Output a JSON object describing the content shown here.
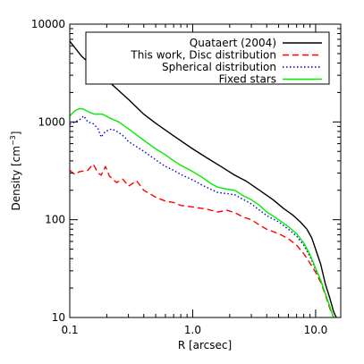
{
  "chart_data": {
    "type": "line",
    "xscale": "log",
    "yscale": "log",
    "xlim": [
      0.1,
      16
    ],
    "ylim": [
      10,
      10000
    ],
    "xlabel": "R [arcsec]",
    "ylabel_prefix": "Density [cm",
    "ylabel_exp": "−3",
    "ylabel_suffix": "]",
    "legend_position": "top-right",
    "x_ticks": [
      {
        "value": 0.1,
        "label": "0.1"
      },
      {
        "value": 1.0,
        "label": "1.0"
      },
      {
        "value": 10.0,
        "label": "10.0"
      }
    ],
    "y_ticks": [
      {
        "value": 10,
        "label": "10"
      },
      {
        "value": 100,
        "label": "100"
      },
      {
        "value": 1000,
        "label": "1000"
      },
      {
        "value": 10000,
        "label": "10000"
      }
    ],
    "series": [
      {
        "name": "Quataert (2004)",
        "color": "#000000",
        "dash": "solid",
        "points": [
          [
            0.1,
            6700
          ],
          [
            0.125,
            4700
          ],
          [
            0.15,
            3800
          ],
          [
            0.2,
            2700
          ],
          [
            0.3,
            1700
          ],
          [
            0.4,
            1200
          ],
          [
            0.5,
            970
          ],
          [
            0.7,
            720
          ],
          [
            1.0,
            530
          ],
          [
            1.3,
            430
          ],
          [
            1.7,
            350
          ],
          [
            2.2,
            285
          ],
          [
            2.7,
            250
          ],
          [
            3.5,
            200
          ],
          [
            4.5,
            160
          ],
          [
            5.5,
            130
          ],
          [
            6.5,
            112
          ],
          [
            7.5,
            95
          ],
          [
            8.5,
            80
          ],
          [
            9.3,
            65
          ],
          [
            10.0,
            50
          ],
          [
            11.0,
            35
          ],
          [
            12.0,
            22
          ],
          [
            13.0,
            16
          ],
          [
            14.0,
            11.5
          ],
          [
            15.0,
            9.5
          ]
        ]
      },
      {
        "name": "This work, Disc distribution",
        "color": "#ff0000",
        "dash": "dashed",
        "points": [
          [
            0.1,
            320
          ],
          [
            0.11,
            290
          ],
          [
            0.12,
            310
          ],
          [
            0.14,
            320
          ],
          [
            0.155,
            370
          ],
          [
            0.17,
            300
          ],
          [
            0.18,
            285
          ],
          [
            0.195,
            350
          ],
          [
            0.21,
            280
          ],
          [
            0.24,
            240
          ],
          [
            0.27,
            260
          ],
          [
            0.3,
            220
          ],
          [
            0.35,
            250
          ],
          [
            0.4,
            200
          ],
          [
            0.5,
            170
          ],
          [
            0.6,
            155
          ],
          [
            0.7,
            150
          ],
          [
            0.8,
            140
          ],
          [
            1.0,
            135
          ],
          [
            1.3,
            128
          ],
          [
            1.6,
            120
          ],
          [
            1.9,
            125
          ],
          [
            2.2,
            118
          ],
          [
            2.6,
            106
          ],
          [
            3.0,
            100
          ],
          [
            3.5,
            88
          ],
          [
            4.0,
            80
          ],
          [
            5.0,
            72
          ],
          [
            6.0,
            64
          ],
          [
            7.0,
            55
          ],
          [
            8.0,
            45
          ],
          [
            9.0,
            36
          ],
          [
            10.0,
            29
          ],
          [
            11.0,
            23
          ],
          [
            12.0,
            17
          ],
          [
            13.0,
            12.5
          ],
          [
            14.0,
            10
          ]
        ]
      },
      {
        "name": "Spherical distribution",
        "color": "#0000cc",
        "dash": "dotted",
        "points": [
          [
            0.1,
            950
          ],
          [
            0.11,
            1000
          ],
          [
            0.12,
            1050
          ],
          [
            0.13,
            1150
          ],
          [
            0.14,
            1000
          ],
          [
            0.155,
            960
          ],
          [
            0.17,
            850
          ],
          [
            0.18,
            700
          ],
          [
            0.195,
            800
          ],
          [
            0.22,
            850
          ],
          [
            0.25,
            780
          ],
          [
            0.28,
            700
          ],
          [
            0.3,
            630
          ],
          [
            0.4,
            500
          ],
          [
            0.5,
            410
          ],
          [
            0.6,
            350
          ],
          [
            0.7,
            320
          ],
          [
            0.8,
            290
          ],
          [
            1.0,
            255
          ],
          [
            1.2,
            225
          ],
          [
            1.4,
            205
          ],
          [
            1.6,
            190
          ],
          [
            1.9,
            185
          ],
          [
            2.2,
            180
          ],
          [
            2.6,
            160
          ],
          [
            3.0,
            145
          ],
          [
            3.5,
            125
          ],
          [
            4.0,
            110
          ],
          [
            5.0,
            95
          ],
          [
            6.0,
            80
          ],
          [
            7.0,
            68
          ],
          [
            8.0,
            55
          ],
          [
            9.0,
            42
          ],
          [
            10.0,
            31
          ],
          [
            11.0,
            24
          ],
          [
            12.0,
            17.5
          ],
          [
            13.0,
            13
          ],
          [
            14.0,
            10
          ]
        ]
      },
      {
        "name": "Fixed stars",
        "color": "#00ee00",
        "dash": "solid",
        "points": [
          [
            0.1,
            1150
          ],
          [
            0.11,
            1300
          ],
          [
            0.12,
            1370
          ],
          [
            0.13,
            1350
          ],
          [
            0.145,
            1250
          ],
          [
            0.16,
            1200
          ],
          [
            0.185,
            1200
          ],
          [
            0.21,
            1100
          ],
          [
            0.25,
            1000
          ],
          [
            0.3,
            850
          ],
          [
            0.4,
            650
          ],
          [
            0.5,
            530
          ],
          [
            0.6,
            460
          ],
          [
            0.7,
            400
          ],
          [
            0.8,
            360
          ],
          [
            1.0,
            310
          ],
          [
            1.2,
            270
          ],
          [
            1.4,
            235
          ],
          [
            1.6,
            215
          ],
          [
            1.9,
            205
          ],
          [
            2.2,
            200
          ],
          [
            2.6,
            175
          ],
          [
            3.0,
            160
          ],
          [
            3.5,
            140
          ],
          [
            4.0,
            120
          ],
          [
            5.0,
            100
          ],
          [
            6.0,
            85
          ],
          [
            7.0,
            72
          ],
          [
            8.0,
            58
          ],
          [
            9.0,
            44
          ],
          [
            10.0,
            32
          ],
          [
            11.0,
            24
          ],
          [
            12.0,
            17.5
          ],
          [
            13.0,
            13
          ],
          [
            14.0,
            10
          ]
        ]
      }
    ]
  }
}
